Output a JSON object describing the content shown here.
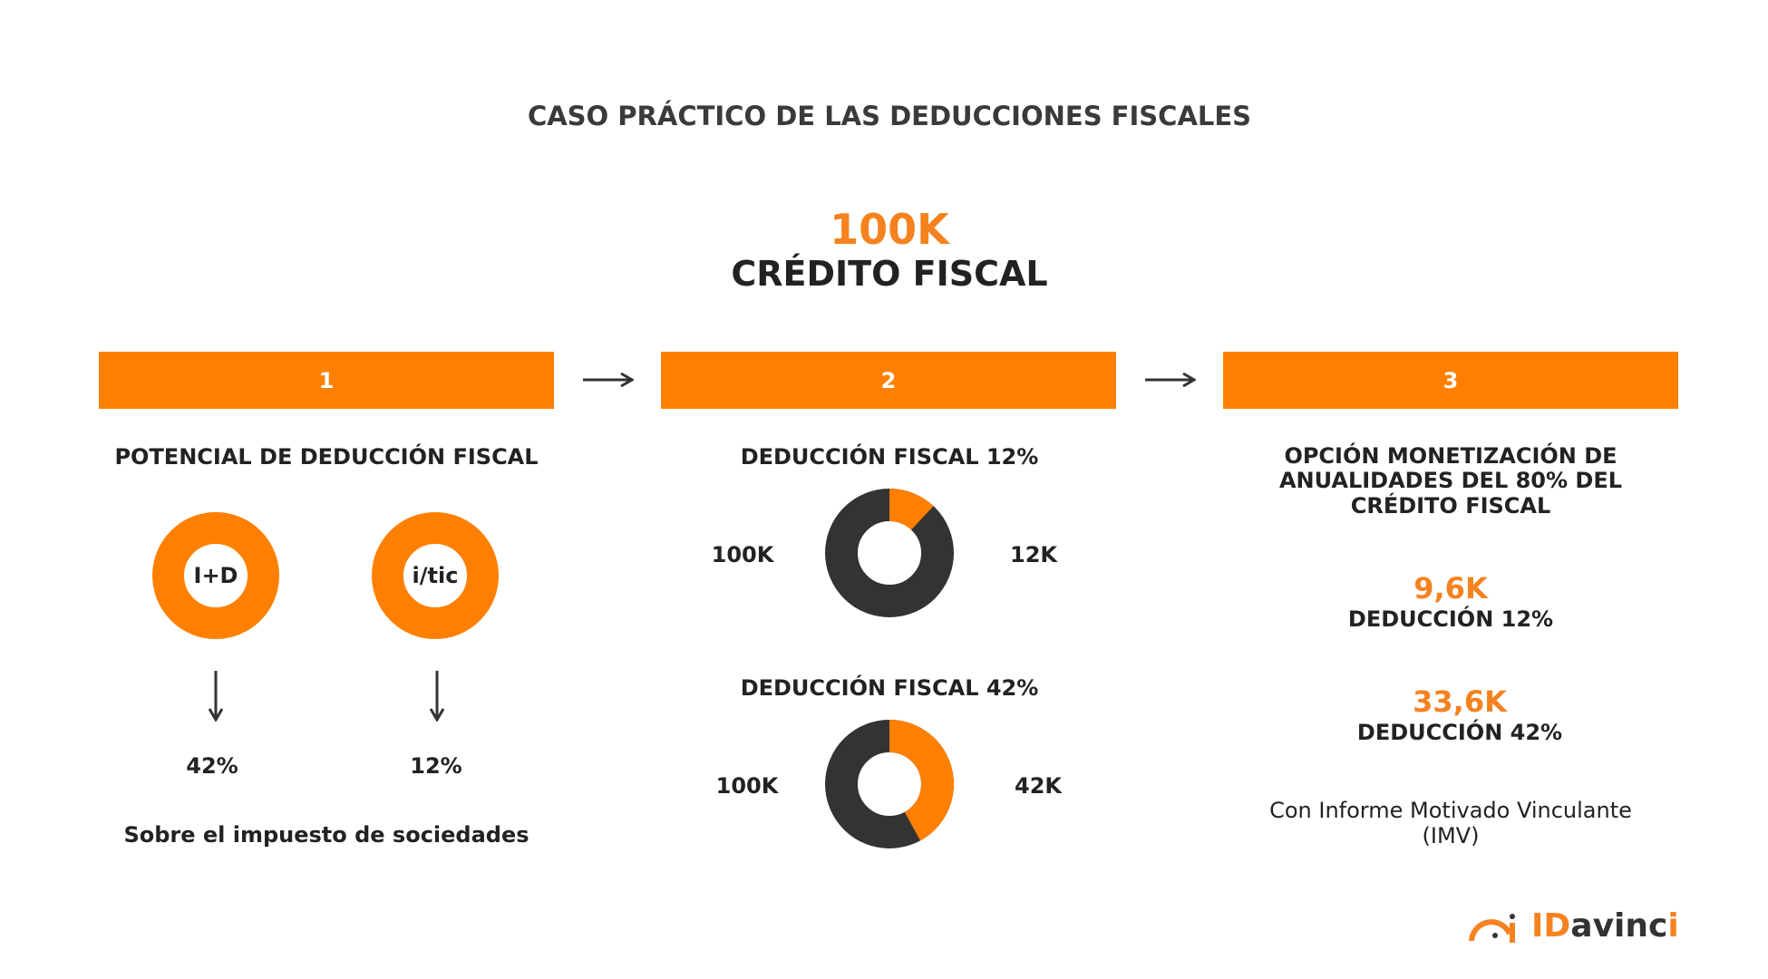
{
  "title": "CASO PRÁCTICO DE LAS DEDUCCIONES FISCALES",
  "headline": {
    "value": "100K",
    "label": "CRÉDITO FISCAL"
  },
  "colors": {
    "accent": "#ff8000",
    "dark": "#333333"
  },
  "steps": [
    {
      "number": "1",
      "heading": "POTENCIAL DE DEDUCCIÓN FISCAL",
      "items": [
        {
          "label": "I+D",
          "percent": "42%"
        },
        {
          "label": "i/tic",
          "percent": "12%"
        }
      ],
      "footer": "Sobre el impuesto de sociedades"
    },
    {
      "number": "2",
      "charts": [
        {
          "heading": "DEDUCCIÓN FISCAL 12%",
          "total": "100K",
          "deduction": "12K",
          "fraction": 0.12
        },
        {
          "heading": "DEDUCCIÓN FISCAL 42%",
          "total": "100K",
          "deduction": "42K",
          "fraction": 0.42
        }
      ]
    },
    {
      "number": "3",
      "heading_lines": [
        "OPCIÓN MONETIZACIÓN DE",
        "ANUALIDADES DEL 80% DEL",
        "CRÉDITO FISCAL"
      ],
      "values": [
        {
          "value": "9,6K",
          "label": "DEDUCCIÓN 12%"
        },
        {
          "value": "33,6K",
          "label": "DEDUCCIÓN 42%"
        }
      ],
      "note_lines": [
        "Con Informe Motivado Vinculante",
        "(IMV)"
      ]
    }
  ],
  "arrow_icon": "arrow-right-icon",
  "logo": {
    "text": "IDavinci"
  }
}
